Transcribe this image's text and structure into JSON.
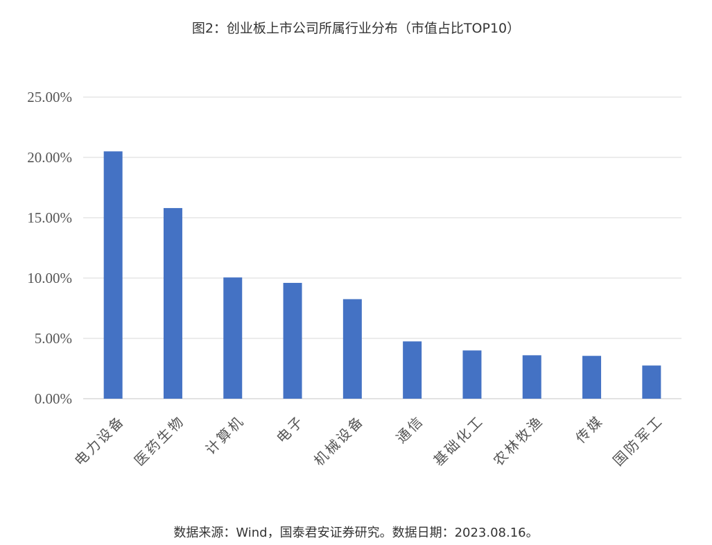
{
  "title": "图2：创业板上市公司所属行业分布（市值占比TOP10）",
  "source": "数据来源：Wind，国泰君安证券研究。数据日期：2023.08.16。",
  "chart_data": {
    "type": "bar",
    "categories": [
      "电力设备",
      "医药生物",
      "计算机",
      "电子",
      "机械设备",
      "通信",
      "基础化工",
      "农林牧渔",
      "传媒",
      "国防军工"
    ],
    "values": [
      20.5,
      15.8,
      10.05,
      9.6,
      8.25,
      4.75,
      4.0,
      3.6,
      3.55,
      2.75
    ],
    "ylim": [
      0,
      25
    ],
    "yticks": [
      "0.00%",
      "5.00%",
      "10.00%",
      "15.00%",
      "20.00%",
      "25.00%"
    ],
    "grid": true,
    "bar_color": "#4472C4",
    "grid_color": "#D9D9D9"
  }
}
